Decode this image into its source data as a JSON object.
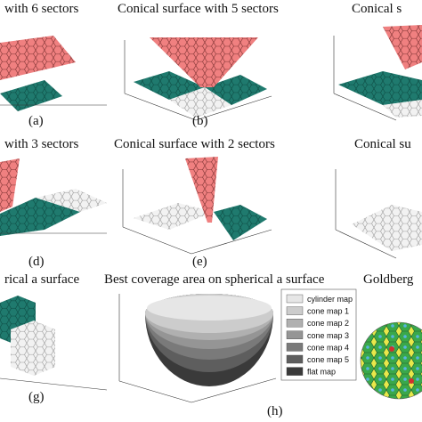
{
  "colors": {
    "cone": "#f08080",
    "cone_stroke": "#7a3030",
    "teal": "#1f7a6e",
    "teal_stroke": "#0c4a42",
    "flat": "#f2f2f2",
    "grid_stroke": "#9a9a9a",
    "axis": "#333333",
    "goldberg_yellow": "#e8e84a",
    "goldberg_green": "#3aa84a",
    "goldberg_blue": "#56b4e0",
    "goldberg_red": "#d03030"
  },
  "panels": [
    {
      "id": "a",
      "title": "with 6 sectors",
      "caption": "(a)"
    },
    {
      "id": "b",
      "title": "Conical surface with 5 sectors",
      "caption": "(b)"
    },
    {
      "id": "c",
      "title": "Conical s",
      "caption": ""
    },
    {
      "id": "d",
      "title": "with 3 sectors",
      "caption": "(d)"
    },
    {
      "id": "e",
      "title": "Conical surface with 2 sectors",
      "caption": "(e)"
    },
    {
      "id": "f",
      "title": "Conical su",
      "caption": ""
    },
    {
      "id": "g",
      "title": "rical a surface",
      "caption": "(g)"
    },
    {
      "id": "h",
      "title": "Best coverage area on spherical a surface",
      "caption": "(h)"
    },
    {
      "id": "i",
      "title": "Goldberg",
      "caption": ""
    }
  ],
  "legend": {
    "items": [
      {
        "label": "cylinder map",
        "color": "#e6e6e6"
      },
      {
        "label": "cone map 1",
        "color": "#cccccc"
      },
      {
        "label": "cone map 2",
        "color": "#b0b0b0"
      },
      {
        "label": "cone map 3",
        "color": "#959595"
      },
      {
        "label": "cone map 4",
        "color": "#7a7a7a"
      },
      {
        "label": "cone map 5",
        "color": "#5e5e5e"
      },
      {
        "label": "flat map",
        "color": "#3a3a3a"
      }
    ]
  }
}
